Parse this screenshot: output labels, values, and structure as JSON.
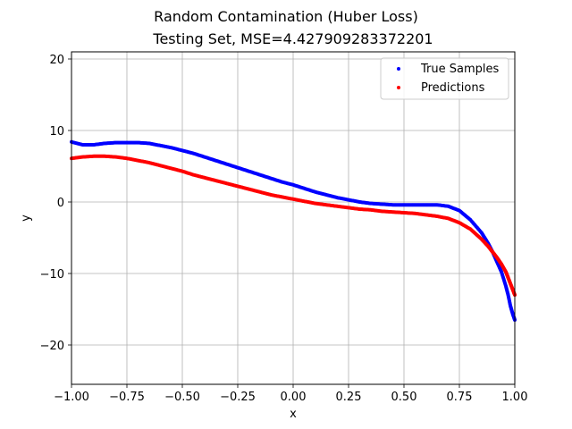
{
  "chart_data": {
    "type": "scatter",
    "suptitle": "Random Contamination (Huber Loss)",
    "title": "Testing Set, MSE=4.427909283372201",
    "xlabel": "x",
    "ylabel": "y",
    "xlim": [
      -1.0,
      1.0
    ],
    "ylim": [
      -25.5,
      21.0
    ],
    "xticks": [
      -1.0,
      -0.75,
      -0.5,
      -0.25,
      0.0,
      0.25,
      0.5,
      0.75,
      1.0
    ],
    "xtick_labels": [
      "−1.00",
      "−0.75",
      "−0.50",
      "−0.25",
      "0.00",
      "0.25",
      "0.50",
      "0.75",
      "1.00"
    ],
    "yticks": [
      20,
      10,
      0,
      -10,
      -20
    ],
    "ytick_labels": [
      "20",
      "10",
      "0",
      "−10",
      "−20"
    ],
    "grid": true,
    "legend_position": "top-right",
    "series": [
      {
        "name": "True Samples",
        "color": "#0000ff",
        "x": [
          -1.0,
          -0.95,
          -0.9,
          -0.85,
          -0.8,
          -0.75,
          -0.7,
          -0.65,
          -0.6,
          -0.55,
          -0.5,
          -0.45,
          -0.4,
          -0.35,
          -0.3,
          -0.25,
          -0.2,
          -0.15,
          -0.1,
          -0.05,
          0.0,
          0.05,
          0.1,
          0.15,
          0.2,
          0.25,
          0.3,
          0.35,
          0.4,
          0.45,
          0.5,
          0.55,
          0.6,
          0.65,
          0.7,
          0.75,
          0.8,
          0.85,
          0.88,
          0.9,
          0.92,
          0.94,
          0.96,
          0.97,
          0.98,
          0.99,
          1.0
        ],
        "y": [
          8.4,
          8.0,
          8.0,
          8.2,
          8.3,
          8.3,
          8.3,
          8.2,
          7.9,
          7.6,
          7.2,
          6.8,
          6.3,
          5.8,
          5.3,
          4.8,
          4.3,
          3.8,
          3.3,
          2.8,
          2.4,
          1.9,
          1.4,
          1.0,
          0.6,
          0.3,
          0.0,
          -0.2,
          -0.3,
          -0.4,
          -0.4,
          -0.4,
          -0.4,
          -0.4,
          -0.6,
          -1.2,
          -2.5,
          -4.3,
          -5.8,
          -7.0,
          -8.4,
          -9.8,
          -11.8,
          -13.0,
          -14.5,
          -15.6,
          -16.5
        ]
      },
      {
        "name": "Predictions",
        "color": "#ff0000",
        "x": [
          -1.0,
          -0.95,
          -0.9,
          -0.85,
          -0.8,
          -0.75,
          -0.7,
          -0.65,
          -0.6,
          -0.55,
          -0.5,
          -0.45,
          -0.4,
          -0.35,
          -0.3,
          -0.25,
          -0.2,
          -0.15,
          -0.1,
          -0.05,
          0.0,
          0.05,
          0.1,
          0.15,
          0.2,
          0.25,
          0.3,
          0.35,
          0.4,
          0.45,
          0.5,
          0.55,
          0.6,
          0.65,
          0.7,
          0.75,
          0.8,
          0.85,
          0.88,
          0.9,
          0.92,
          0.94,
          0.96,
          0.97,
          0.98,
          0.99,
          1.0
        ],
        "y": [
          6.1,
          6.3,
          6.4,
          6.4,
          6.3,
          6.1,
          5.8,
          5.5,
          5.1,
          4.7,
          4.3,
          3.8,
          3.4,
          3.0,
          2.6,
          2.2,
          1.8,
          1.4,
          1.0,
          0.7,
          0.4,
          0.1,
          -0.2,
          -0.4,
          -0.6,
          -0.8,
          -1.0,
          -1.1,
          -1.3,
          -1.4,
          -1.5,
          -1.6,
          -1.8,
          -2.0,
          -2.3,
          -2.9,
          -3.8,
          -5.2,
          -6.2,
          -7.0,
          -7.8,
          -8.7,
          -9.8,
          -10.6,
          -11.4,
          -12.2,
          -13.0
        ]
      }
    ]
  }
}
